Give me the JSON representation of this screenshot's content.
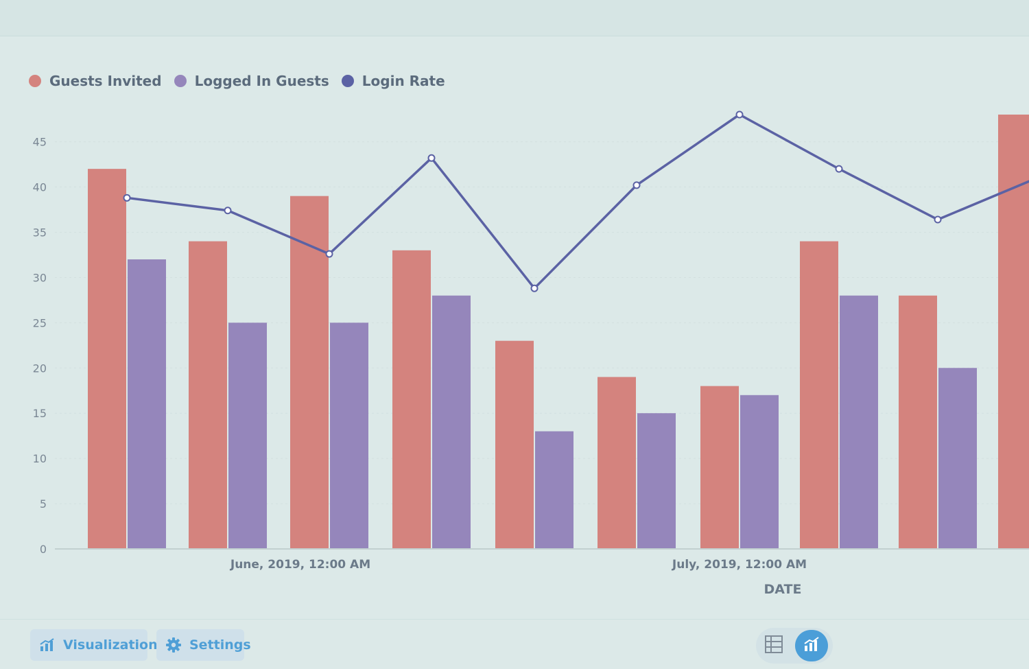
{
  "chart_data": {
    "type": "bar",
    "categories": [
      "",
      "",
      "",
      "",
      "",
      "",
      "",
      "",
      "",
      ""
    ],
    "x_tick_labels": [
      "June, 2019, 12:00 AM",
      "July, 2019, 12:00 AM"
    ],
    "xlabel": "DATE",
    "ylabel": "",
    "ylim": [
      0,
      48
    ],
    "y_ticks": [
      0,
      5,
      10,
      15,
      20,
      25,
      30,
      35,
      40,
      45
    ],
    "grid": true,
    "legend_position": "top-left",
    "series": [
      {
        "name": "Guests Invited",
        "type": "bar",
        "color": "#d4837e",
        "values": [
          42,
          34,
          39,
          33,
          23,
          19,
          18,
          34,
          28,
          48
        ]
      },
      {
        "name": "Logged In Guests",
        "type": "bar",
        "color": "#9586bb",
        "values": [
          32,
          25,
          25,
          28,
          13,
          15,
          17,
          28,
          20,
          null
        ]
      },
      {
        "name": "Login Rate",
        "type": "line",
        "color": "#5b62a4",
        "values": [
          38.8,
          37.4,
          32.6,
          43.2,
          28.8,
          40.2,
          48.0,
          42.0,
          36.4,
          41.0
        ]
      }
    ]
  },
  "toolbar": {
    "visualization_label": "Visualization",
    "settings_label": "Settings",
    "visualization_icon": "bar-chart-icon",
    "settings_icon": "gear-icon"
  },
  "view_toggle": {
    "table_icon": "table-icon",
    "chart_icon": "bar-chart-icon",
    "active": "chart",
    "active_color": "#4b9ed8"
  }
}
